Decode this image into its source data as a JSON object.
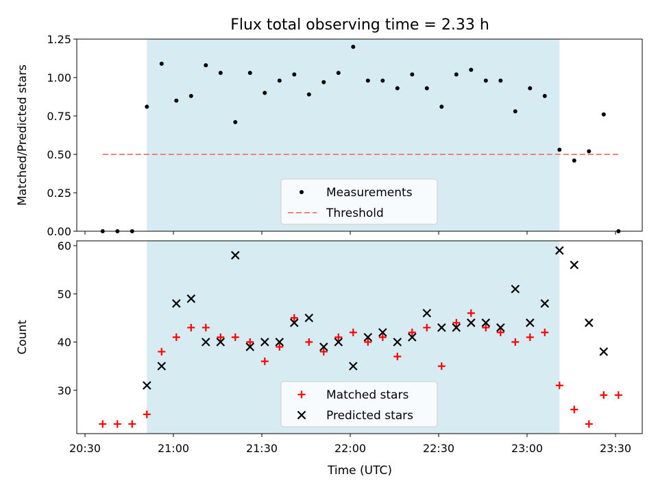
{
  "chart_data": {
    "type": "scatter",
    "title": "Flux total observing time = 2.33 h",
    "xlabel": "Time (UTC)",
    "x_ticks": [
      "20:30",
      "21:00",
      "21:30",
      "22:00",
      "22:30",
      "23:00",
      "23:30"
    ],
    "shaded_interval": {
      "start": "20:51",
      "end": "23:11",
      "color": "#add8e6"
    },
    "panels": [
      {
        "ylabel": "Matched/Predicted stars",
        "ylim": [
          0,
          1.25
        ],
        "yticks": [
          "0.00",
          "0.25",
          "0.50",
          "0.75",
          "1.00",
          "1.25"
        ],
        "series": [
          {
            "name": "Measurements",
            "marker": "dot",
            "color": "#000000",
            "points": [
              [
                "20:36",
                0.0
              ],
              [
                "20:41",
                0.0
              ],
              [
                "20:46",
                0.0
              ],
              [
                "20:51",
                0.81
              ],
              [
                "20:56",
                1.09
              ],
              [
                "21:01",
                0.85
              ],
              [
                "21:06",
                0.88
              ],
              [
                "21:11",
                1.08
              ],
              [
                "21:16",
                1.03
              ],
              [
                "21:21",
                0.71
              ],
              [
                "21:26",
                1.03
              ],
              [
                "21:31",
                0.9
              ],
              [
                "21:36",
                0.98
              ],
              [
                "21:41",
                1.02
              ],
              [
                "21:46",
                0.89
              ],
              [
                "21:51",
                0.97
              ],
              [
                "21:56",
                1.03
              ],
              [
                "22:01",
                1.2
              ],
              [
                "22:06",
                0.98
              ],
              [
                "22:11",
                0.98
              ],
              [
                "22:16",
                0.93
              ],
              [
                "22:21",
                1.02
              ],
              [
                "22:26",
                0.93
              ],
              [
                "22:31",
                0.81
              ],
              [
                "22:36",
                1.02
              ],
              [
                "22:41",
                1.05
              ],
              [
                "22:46",
                0.98
              ],
              [
                "22:51",
                0.98
              ],
              [
                "22:56",
                0.78
              ],
              [
                "23:01",
                0.93
              ],
              [
                "23:06",
                0.88
              ],
              [
                "23:11",
                0.53
              ],
              [
                "23:16",
                0.46
              ],
              [
                "23:21",
                0.52
              ],
              [
                "23:26",
                0.76
              ],
              [
                "23:31",
                0.0
              ]
            ]
          },
          {
            "name": "Threshold",
            "marker": "dashed-line",
            "color": "#f08080",
            "points": [
              [
                "20:36",
                0.5
              ],
              [
                "23:31",
                0.5
              ]
            ]
          }
        ],
        "legend": "lower-center"
      },
      {
        "ylabel": "Count",
        "ylim": [
          21,
          61
        ],
        "yticks": [
          "30",
          "40",
          "50",
          "60"
        ],
        "series": [
          {
            "name": "Matched stars",
            "marker": "plus",
            "color": "#ff0000",
            "points": [
              [
                "20:36",
                23
              ],
              [
                "20:41",
                23
              ],
              [
                "20:46",
                23
              ],
              [
                "20:51",
                25
              ],
              [
                "20:56",
                38
              ],
              [
                "21:01",
                41
              ],
              [
                "21:06",
                43
              ],
              [
                "21:11",
                43
              ],
              [
                "21:16",
                41
              ],
              [
                "21:21",
                41
              ],
              [
                "21:26",
                40
              ],
              [
                "21:31",
                36
              ],
              [
                "21:36",
                39
              ],
              [
                "21:41",
                45
              ],
              [
                "21:46",
                40
              ],
              [
                "21:51",
                38
              ],
              [
                "21:56",
                41
              ],
              [
                "22:01",
                42
              ],
              [
                "22:06",
                40
              ],
              [
                "22:11",
                41
              ],
              [
                "22:16",
                37
              ],
              [
                "22:21",
                42
              ],
              [
                "22:26",
                43
              ],
              [
                "22:31",
                35
              ],
              [
                "22:36",
                44
              ],
              [
                "22:41",
                46
              ],
              [
                "22:46",
                43
              ],
              [
                "22:51",
                42
              ],
              [
                "22:56",
                40
              ],
              [
                "23:01",
                41
              ],
              [
                "23:06",
                42
              ],
              [
                "23:11",
                31
              ],
              [
                "23:16",
                26
              ],
              [
                "23:21",
                23
              ],
              [
                "23:26",
                29
              ],
              [
                "23:31",
                29
              ]
            ]
          },
          {
            "name": "Predicted stars",
            "marker": "x",
            "color": "#000000",
            "points": [
              [
                "20:51",
                31
              ],
              [
                "20:56",
                35
              ],
              [
                "21:01",
                48
              ],
              [
                "21:06",
                49
              ],
              [
                "21:11",
                40
              ],
              [
                "21:16",
                40
              ],
              [
                "21:21",
                58
              ],
              [
                "21:26",
                39
              ],
              [
                "21:31",
                40
              ],
              [
                "21:36",
                40
              ],
              [
                "21:41",
                44
              ],
              [
                "21:46",
                45
              ],
              [
                "21:51",
                39
              ],
              [
                "21:56",
                40
              ],
              [
                "22:01",
                35
              ],
              [
                "22:06",
                41
              ],
              [
                "22:11",
                42
              ],
              [
                "22:16",
                40
              ],
              [
                "22:21",
                41
              ],
              [
                "22:26",
                46
              ],
              [
                "22:31",
                43
              ],
              [
                "22:36",
                43
              ],
              [
                "22:41",
                44
              ],
              [
                "22:46",
                44
              ],
              [
                "22:51",
                43
              ],
              [
                "22:56",
                51
              ],
              [
                "23:01",
                44
              ],
              [
                "23:06",
                48
              ],
              [
                "23:11",
                59
              ],
              [
                "23:16",
                56
              ],
              [
                "23:21",
                44
              ],
              [
                "23:26",
                38
              ]
            ]
          }
        ],
        "legend": "lower-center"
      }
    ]
  }
}
